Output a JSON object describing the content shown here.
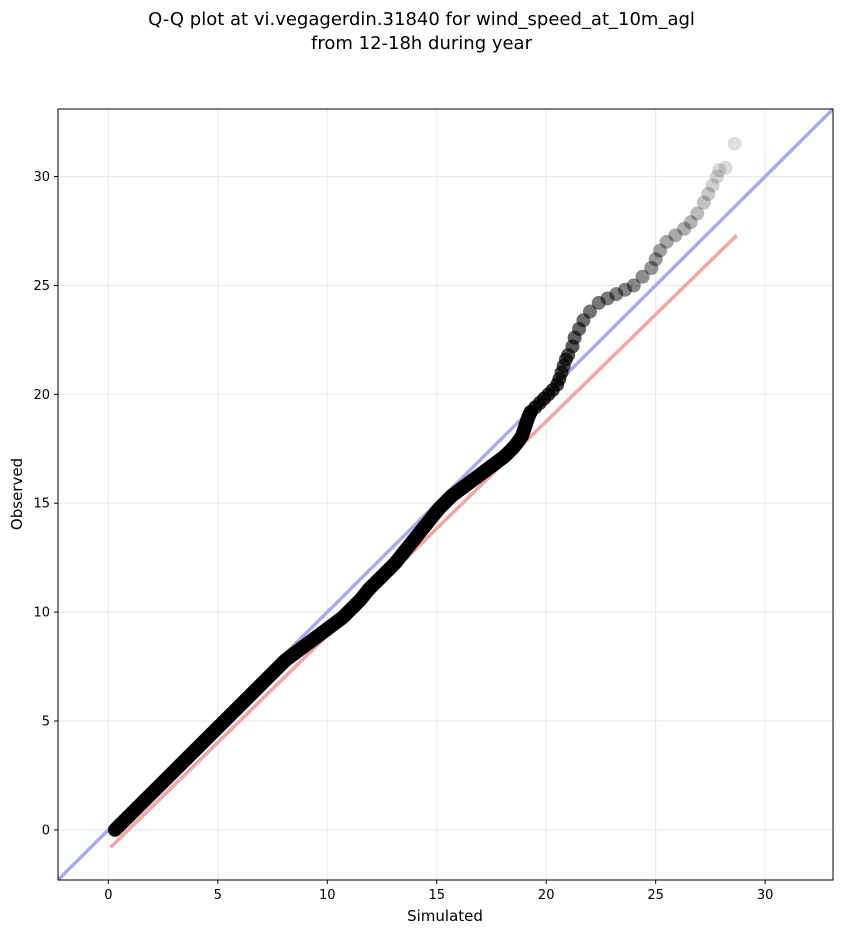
{
  "chart_data": {
    "type": "scatter",
    "title_line1": "Q-Q plot at vi.vegagerdin.31840 for wind_speed_at_10m_agl",
    "title_line2": "from 12-18h during year",
    "xlabel": "Simulated",
    "ylabel": "Observed",
    "xlim": [
      -2.3,
      33.1
    ],
    "ylim": [
      -2.3,
      33.1
    ],
    "xticks": [
      0,
      5,
      10,
      15,
      20,
      25,
      30
    ],
    "yticks": [
      0,
      5,
      10,
      15,
      20,
      25,
      30
    ],
    "grid": true,
    "identity_line": {
      "color": "#aaaaf2",
      "from": [
        -2.3,
        -2.3
      ],
      "to": [
        33.1,
        33.1
      ]
    },
    "fit_line": {
      "color": "#f4a4a4",
      "from": [
        0.1,
        -0.8
      ],
      "to": [
        28.7,
        27.3
      ]
    },
    "points_color": "#000000",
    "points": [
      [
        0.3,
        0.0
      ],
      [
        0.5,
        0.2
      ],
      [
        0.7,
        0.4
      ],
      [
        0.9,
        0.6
      ],
      [
        1.1,
        0.8
      ],
      [
        1.3,
        1.0
      ],
      [
        1.5,
        1.2
      ],
      [
        1.7,
        1.4
      ],
      [
        1.9,
        1.6
      ],
      [
        2.1,
        1.8
      ],
      [
        2.3,
        2.0
      ],
      [
        2.5,
        2.2
      ],
      [
        2.7,
        2.4
      ],
      [
        2.9,
        2.6
      ],
      [
        3.1,
        2.8
      ],
      [
        3.3,
        3.0
      ],
      [
        3.5,
        3.2
      ],
      [
        3.7,
        3.4
      ],
      [
        3.9,
        3.6
      ],
      [
        4.1,
        3.8
      ],
      [
        4.3,
        4.0
      ],
      [
        4.5,
        4.2
      ],
      [
        4.7,
        4.4
      ],
      [
        4.9,
        4.6
      ],
      [
        5.1,
        4.8
      ],
      [
        5.3,
        5.0
      ],
      [
        5.5,
        5.2
      ],
      [
        5.7,
        5.4
      ],
      [
        5.9,
        5.6
      ],
      [
        6.1,
        5.8
      ],
      [
        6.3,
        6.0
      ],
      [
        6.5,
        6.2
      ],
      [
        6.7,
        6.4
      ],
      [
        6.9,
        6.6
      ],
      [
        7.1,
        6.8
      ],
      [
        7.3,
        7.0
      ],
      [
        7.5,
        7.2
      ],
      [
        7.7,
        7.4
      ],
      [
        7.9,
        7.6
      ],
      [
        8.1,
        7.8
      ],
      [
        8.3,
        7.95
      ],
      [
        8.5,
        8.1
      ],
      [
        8.7,
        8.25
      ],
      [
        8.9,
        8.4
      ],
      [
        9.1,
        8.55
      ],
      [
        9.3,
        8.7
      ],
      [
        9.5,
        8.85
      ],
      [
        9.7,
        9.0
      ],
      [
        9.9,
        9.15
      ],
      [
        10.1,
        9.3
      ],
      [
        10.3,
        9.45
      ],
      [
        10.5,
        9.6
      ],
      [
        10.7,
        9.75
      ],
      [
        10.9,
        9.95
      ],
      [
        11.1,
        10.15
      ],
      [
        11.3,
        10.35
      ],
      [
        11.5,
        10.55
      ],
      [
        11.7,
        10.8
      ],
      [
        11.9,
        11.05
      ],
      [
        12.1,
        11.25
      ],
      [
        12.3,
        11.45
      ],
      [
        12.5,
        11.65
      ],
      [
        12.7,
        11.85
      ],
      [
        12.9,
        12.05
      ],
      [
        13.1,
        12.25
      ],
      [
        13.3,
        12.5
      ],
      [
        13.5,
        12.75
      ],
      [
        13.7,
        13.0
      ],
      [
        13.9,
        13.25
      ],
      [
        14.1,
        13.5
      ],
      [
        14.3,
        13.75
      ],
      [
        14.5,
        14.0
      ],
      [
        14.7,
        14.25
      ],
      [
        14.9,
        14.5
      ],
      [
        15.1,
        14.75
      ],
      [
        15.3,
        14.95
      ],
      [
        15.5,
        15.15
      ],
      [
        15.7,
        15.35
      ],
      [
        15.9,
        15.5
      ],
      [
        16.1,
        15.65
      ],
      [
        16.3,
        15.8
      ],
      [
        16.5,
        15.95
      ],
      [
        16.7,
        16.1
      ],
      [
        16.9,
        16.25
      ],
      [
        17.1,
        16.4
      ],
      [
        17.3,
        16.55
      ],
      [
        17.5,
        16.7
      ],
      [
        17.7,
        16.85
      ],
      [
        17.9,
        17.0
      ],
      [
        18.1,
        17.15
      ],
      [
        18.3,
        17.35
      ],
      [
        18.5,
        17.55
      ],
      [
        18.7,
        17.8
      ],
      [
        18.9,
        18.1
      ],
      [
        19.0,
        18.4
      ],
      [
        19.1,
        18.7
      ],
      [
        19.2,
        19.0
      ],
      [
        19.3,
        19.2
      ],
      [
        19.5,
        19.4
      ],
      [
        19.7,
        19.6
      ],
      [
        19.9,
        19.8
      ],
      [
        20.1,
        20.0
      ],
      [
        20.3,
        20.2
      ],
      [
        20.5,
        20.45
      ],
      [
        20.6,
        20.7
      ],
      [
        20.7,
        21.0
      ],
      [
        20.8,
        21.3
      ],
      [
        20.9,
        21.6
      ],
      [
        21.0,
        21.8
      ],
      [
        21.2,
        22.2
      ],
      [
        21.3,
        22.6
      ],
      [
        21.5,
        23.0
      ],
      [
        21.7,
        23.4
      ],
      [
        22.0,
        23.8
      ],
      [
        22.4,
        24.2
      ],
      [
        22.8,
        24.4
      ],
      [
        23.2,
        24.6
      ],
      [
        23.6,
        24.8
      ],
      [
        24.0,
        25.0
      ],
      [
        24.4,
        25.4
      ],
      [
        24.8,
        25.8
      ],
      [
        25.0,
        26.2
      ],
      [
        25.2,
        26.6
      ],
      [
        25.5,
        27.0
      ],
      [
        25.9,
        27.3
      ],
      [
        26.3,
        27.6
      ],
      [
        26.6,
        27.9
      ],
      [
        26.9,
        28.3
      ],
      [
        27.2,
        28.8
      ],
      [
        27.4,
        29.2
      ],
      [
        27.6,
        29.6
      ],
      [
        27.8,
        30.0
      ],
      [
        27.9,
        30.3
      ],
      [
        28.2,
        30.4
      ],
      [
        28.6,
        31.5
      ]
    ]
  }
}
